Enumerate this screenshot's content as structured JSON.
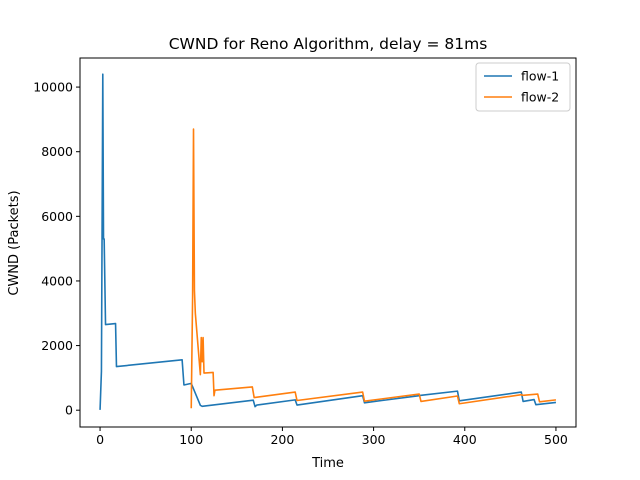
{
  "chart_data": {
    "type": "line",
    "title": "CWND for Reno Algorithm, delay = 81ms",
    "xlabel": "Time",
    "ylabel": "CWND (Packets)",
    "xlim": [
      -22,
      522
    ],
    "ylim": [
      -520,
      10900
    ],
    "xticks": [
      0,
      100,
      200,
      300,
      400,
      500
    ],
    "yticks": [
      0,
      2000,
      4000,
      6000,
      8000,
      10000
    ],
    "grid": false,
    "legend_position": "top-right",
    "series": [
      {
        "name": "flow-1",
        "color": "#1f77b4",
        "points": [
          [
            0,
            10
          ],
          [
            1.5,
            1200
          ],
          [
            3,
            10400
          ],
          [
            3.8,
            5300
          ],
          [
            4.5,
            5300
          ],
          [
            6,
            2650
          ],
          [
            17,
            2680
          ],
          [
            18,
            1350
          ],
          [
            90,
            1560
          ],
          [
            92,
            780
          ],
          [
            100,
            830
          ],
          [
            110,
            150
          ],
          [
            112,
            120
          ],
          [
            168,
            310
          ],
          [
            170,
            110
          ],
          [
            172,
            160
          ],
          [
            214,
            320
          ],
          [
            216,
            160
          ],
          [
            288,
            450
          ],
          [
            290,
            230
          ],
          [
            350,
            450
          ],
          [
            352,
            460
          ],
          [
            392,
            590
          ],
          [
            394,
            290
          ],
          [
            462,
            560
          ],
          [
            464,
            270
          ],
          [
            476,
            330
          ],
          [
            478,
            170
          ],
          [
            500,
            240
          ]
        ]
      },
      {
        "name": "flow-2",
        "color": "#ff7f0e",
        "points": [
          [
            100,
            60
          ],
          [
            101.5,
            3500
          ],
          [
            102.5,
            8700
          ],
          [
            103.5,
            3700
          ],
          [
            104.5,
            3000
          ],
          [
            110,
            1100
          ],
          [
            111,
            2250
          ],
          [
            112,
            1500
          ],
          [
            113,
            2250
          ],
          [
            114,
            1150
          ],
          [
            124,
            1170
          ],
          [
            125,
            450
          ],
          [
            126,
            620
          ],
          [
            167,
            720
          ],
          [
            169,
            390
          ],
          [
            214,
            560
          ],
          [
            216,
            300
          ],
          [
            288,
            560
          ],
          [
            290,
            280
          ],
          [
            350,
            500
          ],
          [
            352,
            270
          ],
          [
            392,
            440
          ],
          [
            394,
            200
          ],
          [
            462,
            480
          ],
          [
            464,
            460
          ],
          [
            480,
            500
          ],
          [
            482,
            260
          ],
          [
            500,
            320
          ]
        ]
      }
    ]
  }
}
